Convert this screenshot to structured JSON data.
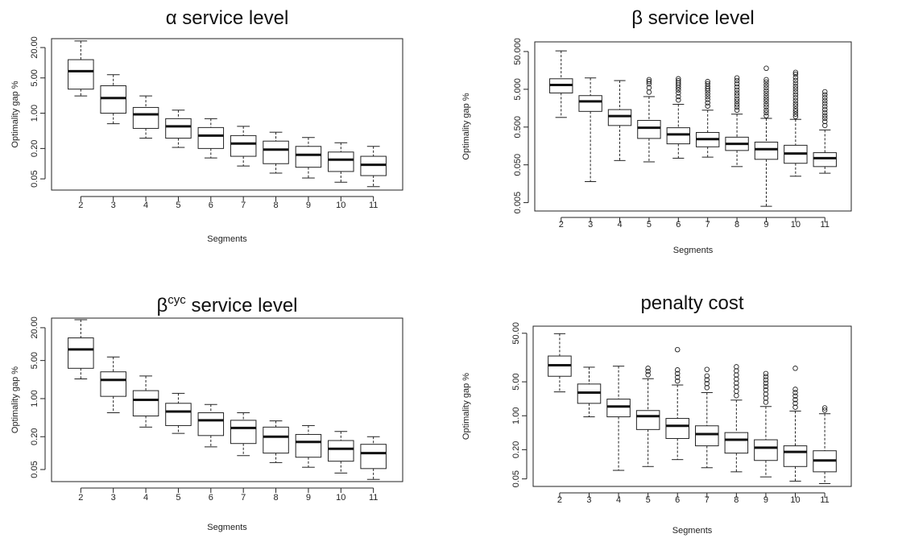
{
  "chart_data": [
    {
      "type": "boxplot",
      "title": "α service level",
      "xlabel": "Segments",
      "ylabel": "Optimality gap %",
      "yscale": "log",
      "ylim": [
        0.03,
        30
      ],
      "yticks": [
        "0.05",
        "0.20",
        "1.00",
        "5.00",
        "20.00"
      ],
      "ytick_values": [
        0.05,
        0.2,
        1,
        5,
        20
      ],
      "categories": [
        "2",
        "3",
        "4",
        "5",
        "6",
        "7",
        "8",
        "9",
        "10",
        "11"
      ],
      "boxes": [
        {
          "lo": 2.2,
          "q1": 3.0,
          "med": 6.8,
          "q3": 11.5,
          "hi": 27,
          "out": []
        },
        {
          "lo": 0.62,
          "q1": 1.0,
          "med": 2.0,
          "q3": 3.5,
          "hi": 5.8,
          "out": []
        },
        {
          "lo": 0.32,
          "q1": 0.5,
          "med": 0.95,
          "q3": 1.3,
          "hi": 2.2,
          "out": []
        },
        {
          "lo": 0.21,
          "q1": 0.32,
          "med": 0.55,
          "q3": 0.78,
          "hi": 1.15,
          "out": []
        },
        {
          "lo": 0.13,
          "q1": 0.2,
          "med": 0.36,
          "q3": 0.52,
          "hi": 0.78,
          "out": []
        },
        {
          "lo": 0.09,
          "q1": 0.14,
          "med": 0.25,
          "q3": 0.36,
          "hi": 0.55,
          "out": []
        },
        {
          "lo": 0.065,
          "q1": 0.1,
          "med": 0.19,
          "q3": 0.28,
          "hi": 0.42,
          "out": []
        },
        {
          "lo": 0.052,
          "q1": 0.085,
          "med": 0.15,
          "q3": 0.22,
          "hi": 0.33,
          "out": []
        },
        {
          "lo": 0.043,
          "q1": 0.07,
          "med": 0.12,
          "q3": 0.17,
          "hi": 0.26,
          "out": []
        },
        {
          "lo": 0.035,
          "q1": 0.058,
          "med": 0.095,
          "q3": 0.14,
          "hi": 0.22,
          "out": []
        }
      ]
    },
    {
      "type": "boxplot",
      "title": "β service level",
      "xlabel": "Segments",
      "ylabel": "Optimality gap %",
      "yscale": "log",
      "ylim": [
        0.003,
        90
      ],
      "yticks": [
        "0.005",
        "0.050",
        "0.500",
        "5.000",
        "50.000"
      ],
      "ytick_values": [
        0.005,
        0.05,
        0.5,
        5,
        50
      ],
      "categories": [
        "2",
        "3",
        "4",
        "5",
        "6",
        "7",
        "8",
        "9",
        "10",
        "11"
      ],
      "boxes": [
        {
          "lo": 0.9,
          "q1": 4.0,
          "med": 6.5,
          "q3": 9.5,
          "hi": 52,
          "out": []
        },
        {
          "lo": 0.018,
          "q1": 1.3,
          "med": 2.4,
          "q3": 3.4,
          "hi": 10,
          "out": []
        },
        {
          "lo": 0.065,
          "q1": 0.55,
          "med": 0.98,
          "q3": 1.45,
          "hi": 8.5,
          "out": []
        },
        {
          "lo": 0.06,
          "q1": 0.25,
          "med": 0.48,
          "q3": 0.75,
          "hi": 3.2,
          "out": [
            4.2,
            5.5,
            7.0,
            8.0,
            9.0
          ]
        },
        {
          "lo": 0.075,
          "q1": 0.18,
          "med": 0.32,
          "q3": 0.48,
          "hi": 2.0,
          "out": [
            2.6,
            3.2,
            4.0,
            4.8,
            5.6,
            6.5,
            7.4,
            8.4,
            9.5
          ]
        },
        {
          "lo": 0.08,
          "q1": 0.15,
          "med": 0.24,
          "q3": 0.36,
          "hi": 1.4,
          "out": [
            1.8,
            2.2,
            2.7,
            3.2,
            3.8,
            4.5,
            5.2,
            6.0,
            7.0,
            8.0
          ]
        },
        {
          "lo": 0.045,
          "q1": 0.12,
          "med": 0.18,
          "q3": 0.27,
          "hi": 1.1,
          "out": [
            1.4,
            1.7,
            2.0,
            2.4,
            2.8,
            3.4,
            4.0,
            4.8,
            5.8,
            7.0,
            8.5,
            10
          ]
        },
        {
          "lo": 0.004,
          "q1": 0.07,
          "med": 0.13,
          "q3": 0.2,
          "hi": 0.85,
          "out": [
            1.0,
            1.2,
            1.4,
            1.7,
            2.0,
            2.4,
            2.8,
            3.3,
            3.9,
            4.6,
            5.5,
            6.5,
            7.8,
            9.0,
            18
          ]
        },
        {
          "lo": 0.025,
          "q1": 0.055,
          "med": 0.1,
          "q3": 0.165,
          "hi": 0.8,
          "out": [
            0.95,
            1.1,
            1.3,
            1.5,
            1.8,
            2.1,
            2.5,
            3.0,
            3.6,
            4.3,
            5.1,
            6.0,
            7.2,
            8.6,
            10.3,
            12.5,
            14
          ]
        },
        {
          "lo": 0.03,
          "q1": 0.045,
          "med": 0.075,
          "q3": 0.105,
          "hi": 0.42,
          "out": [
            0.55,
            0.7,
            0.85,
            1.0,
            1.2,
            1.45,
            1.75,
            2.1,
            2.5,
            3.0,
            3.6,
            4.3
          ]
        }
      ]
    },
    {
      "type": "boxplot",
      "title": "β",
      "title_superscript": "cyc",
      "title_suffix": " service level",
      "xlabel": "Segments",
      "ylabel": "Optimality gap %",
      "yscale": "log",
      "ylim": [
        0.03,
        30
      ],
      "yticks": [
        "0.05",
        "0.20",
        "1.00",
        "5.00",
        "20.00"
      ],
      "ytick_values": [
        0.05,
        0.2,
        1,
        5,
        20
      ],
      "categories": [
        "2",
        "3",
        "4",
        "5",
        "6",
        "7",
        "8",
        "9",
        "10",
        "11"
      ],
      "boxes": [
        {
          "lo": 2.3,
          "q1": 3.6,
          "med": 8.0,
          "q3": 13,
          "hi": 28,
          "out": []
        },
        {
          "lo": 0.55,
          "q1": 1.1,
          "med": 2.2,
          "q3": 3.1,
          "hi": 5.8,
          "out": []
        },
        {
          "lo": 0.3,
          "q1": 0.48,
          "med": 0.95,
          "q3": 1.4,
          "hi": 2.6,
          "out": []
        },
        {
          "lo": 0.23,
          "q1": 0.32,
          "med": 0.58,
          "q3": 0.82,
          "hi": 1.25,
          "out": []
        },
        {
          "lo": 0.13,
          "q1": 0.21,
          "med": 0.4,
          "q3": 0.55,
          "hi": 0.78,
          "out": []
        },
        {
          "lo": 0.09,
          "q1": 0.15,
          "med": 0.29,
          "q3": 0.4,
          "hi": 0.55,
          "out": []
        },
        {
          "lo": 0.067,
          "q1": 0.1,
          "med": 0.2,
          "q3": 0.3,
          "hi": 0.39,
          "out": []
        },
        {
          "lo": 0.055,
          "q1": 0.084,
          "med": 0.16,
          "q3": 0.22,
          "hi": 0.32,
          "out": []
        },
        {
          "lo": 0.043,
          "q1": 0.071,
          "med": 0.12,
          "q3": 0.17,
          "hi": 0.25,
          "out": []
        },
        {
          "lo": 0.033,
          "q1": 0.052,
          "med": 0.1,
          "q3": 0.145,
          "hi": 0.2,
          "out": []
        }
      ]
    },
    {
      "type": "boxplot",
      "title": "penalty cost",
      "xlabel": "Segments",
      "ylabel": "Optimality gap %",
      "yscale": "log",
      "ylim": [
        0.035,
        70
      ],
      "yticks": [
        "0.05",
        "0.20",
        "1.00",
        "5.00",
        "50.00"
      ],
      "ytick_values": [
        0.05,
        0.2,
        1,
        5,
        50
      ],
      "categories": [
        "2",
        "3",
        "4",
        "5",
        "6",
        "7",
        "8",
        "9",
        "10",
        "11"
      ],
      "boxes": [
        {
          "lo": 3.1,
          "q1": 6.5,
          "med": 11,
          "q3": 17,
          "hi": 49,
          "out": []
        },
        {
          "lo": 0.95,
          "q1": 1.8,
          "med": 3.0,
          "q3": 4.5,
          "hi": 10,
          "out": []
        },
        {
          "lo": 0.075,
          "q1": 0.95,
          "med": 1.55,
          "q3": 2.2,
          "hi": 10.5,
          "out": []
        },
        {
          "lo": 0.09,
          "q1": 0.52,
          "med": 0.98,
          "q3": 1.28,
          "hi": 5.8,
          "out": [
            7.0,
            8.2,
            9.5
          ]
        },
        {
          "lo": 0.125,
          "q1": 0.34,
          "med": 0.62,
          "q3": 0.88,
          "hi": 4.3,
          "out": [
            5.2,
            6.2,
            7.4,
            8.8,
            23
          ]
        },
        {
          "lo": 0.085,
          "q1": 0.24,
          "med": 0.42,
          "q3": 0.62,
          "hi": 3.0,
          "out": [
            3.8,
            4.6,
            5.5,
            6.6,
            9.0
          ]
        },
        {
          "lo": 0.07,
          "q1": 0.17,
          "med": 0.32,
          "q3": 0.45,
          "hi": 2.1,
          "out": [
            2.6,
            3.2,
            3.9,
            4.7,
            5.7,
            6.9,
            8.4,
            10.2
          ]
        },
        {
          "lo": 0.055,
          "q1": 0.12,
          "med": 0.22,
          "q3": 0.32,
          "hi": 1.55,
          "out": [
            1.9,
            2.3,
            2.8,
            3.4,
            4.0,
            4.7,
            5.5,
            6.4,
            7.4
          ]
        },
        {
          "lo": 0.045,
          "q1": 0.09,
          "med": 0.18,
          "q3": 0.24,
          "hi": 1.25,
          "out": [
            1.5,
            1.8,
            2.15,
            2.55,
            3.0,
            3.5,
            9.5
          ]
        },
        {
          "lo": 0.04,
          "q1": 0.07,
          "med": 0.12,
          "q3": 0.19,
          "hi": 1.1,
          "out": [
            1.3,
            1.45
          ]
        }
      ]
    }
  ]
}
